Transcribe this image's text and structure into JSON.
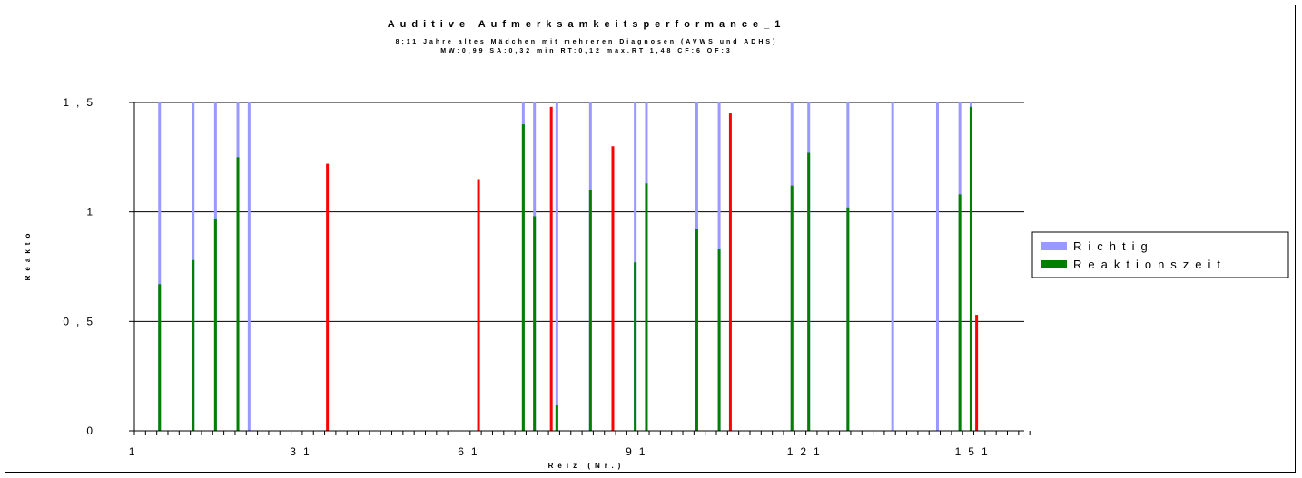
{
  "chart_data": {
    "type": "bar",
    "title": "Auditive Aufmerksamkeitsperformance_1",
    "subtitle1": "8;11 Jahre altes Mädchen mit mehreren Diagnosen (AVWS und ADHS)",
    "subtitle2": "MW:0,99  SA:0,32   min.RT:0,12  max.RT:1,48   CF:6  OF:3",
    "xlabel": "Reiz (Nr.)",
    "ylabel": "Reakto",
    "xlim": [
      1,
      160
    ],
    "ylim": [
      0,
      1.5
    ],
    "x_ticks": [
      "1",
      "31",
      "61",
      "91",
      "121",
      "151"
    ],
    "y_ticks": [
      "0",
      "0,5",
      "1",
      "1,5"
    ],
    "grid": true,
    "legend_position": "right",
    "colors": {
      "richtig": "#9999ff",
      "reaktionszeit": "#007f00",
      "error": "#ff0000"
    },
    "series": [
      {
        "name": "Richtig",
        "points": [
          {
            "x": 5,
            "y": 1.5
          },
          {
            "x": 11,
            "y": 1.5
          },
          {
            "x": 15,
            "y": 1.5
          },
          {
            "x": 19,
            "y": 1.5
          },
          {
            "x": 21,
            "y": 1.5
          },
          {
            "x": 70,
            "y": 1.5
          },
          {
            "x": 72,
            "y": 1.5
          },
          {
            "x": 76,
            "y": 1.5
          },
          {
            "x": 82,
            "y": 1.5
          },
          {
            "x": 90,
            "y": 1.5
          },
          {
            "x": 92,
            "y": 1.5
          },
          {
            "x": 101,
            "y": 1.5
          },
          {
            "x": 105,
            "y": 1.5
          },
          {
            "x": 118,
            "y": 1.5
          },
          {
            "x": 121,
            "y": 1.5
          },
          {
            "x": 128,
            "y": 1.5
          },
          {
            "x": 136,
            "y": 1.5
          },
          {
            "x": 144,
            "y": 1.5
          },
          {
            "x": 148,
            "y": 1.5
          },
          {
            "x": 150,
            "y": 1.5
          }
        ]
      },
      {
        "name": "Reaktionszeit",
        "points": [
          {
            "x": 5,
            "y": 0.67
          },
          {
            "x": 11,
            "y": 0.78
          },
          {
            "x": 15,
            "y": 0.97
          },
          {
            "x": 19,
            "y": 1.25
          },
          {
            "x": 70,
            "y": 1.4
          },
          {
            "x": 72,
            "y": 0.98
          },
          {
            "x": 76,
            "y": 0.12
          },
          {
            "x": 82,
            "y": 1.1
          },
          {
            "x": 90,
            "y": 0.77
          },
          {
            "x": 92,
            "y": 1.13
          },
          {
            "x": 101,
            "y": 0.92
          },
          {
            "x": 105,
            "y": 0.83
          },
          {
            "x": 118,
            "y": 1.12
          },
          {
            "x": 121,
            "y": 1.27
          },
          {
            "x": 128,
            "y": 1.02
          },
          {
            "x": 148,
            "y": 1.08
          },
          {
            "x": 150,
            "y": 1.48
          }
        ]
      },
      {
        "name": "",
        "points": [
          {
            "x": 35,
            "y": 1.22
          },
          {
            "x": 62,
            "y": 1.15
          },
          {
            "x": 75,
            "y": 1.48
          },
          {
            "x": 86,
            "y": 1.3
          },
          {
            "x": 107,
            "y": 1.45
          },
          {
            "x": 151,
            "y": 0.53
          }
        ]
      }
    ]
  }
}
